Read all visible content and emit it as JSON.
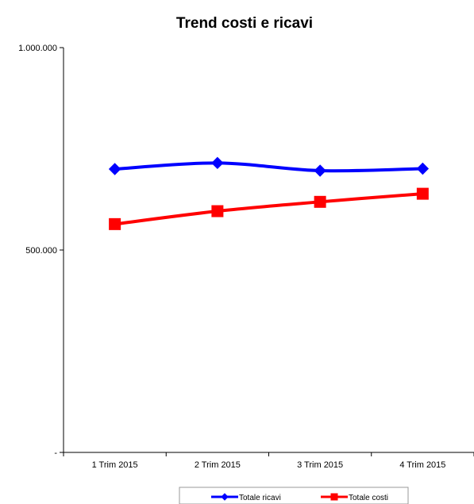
{
  "chart_data": {
    "type": "line",
    "title": "Trend costi e ricavi",
    "xlabel": "",
    "ylabel": "",
    "categories": [
      "1 Trim 2015",
      "2 Trim 2015",
      "3 Trim 2015",
      "4 Trim 2015"
    ],
    "ylim": [
      0,
      1000000
    ],
    "y_ticks": [
      {
        "value": 0,
        "label": "-"
      },
      {
        "value": 500000,
        "label": "500.000"
      },
      {
        "value": 1000000,
        "label": "1.000.000"
      }
    ],
    "grid": false,
    "legend_position": "bottom",
    "series": [
      {
        "name": "Totale ricavi",
        "values": [
          700000,
          715000,
          696000,
          701000
        ],
        "color": "#0000FF",
        "marker": "diamond"
      },
      {
        "name": "Totale costi",
        "values": [
          564000,
          596000,
          619000,
          639000
        ],
        "color": "#FF0000",
        "marker": "square"
      }
    ]
  }
}
